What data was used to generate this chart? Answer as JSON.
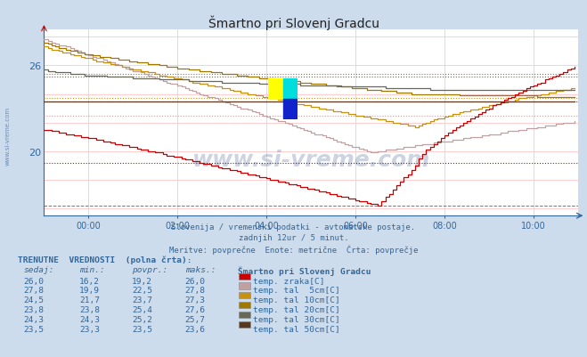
{
  "title": "Šmartno pri Slovenj Gradcu",
  "subtitle1": "Slovenija / vremenski podatki - avtomatske postaje.",
  "subtitle2": "zadnjih 12ur / 5 minut.",
  "subtitle3": "Meritve: povprečne  Enote: metrične  Črta: povprečje",
  "bg_color": "#ccdcec",
  "plot_bg_color": "#ffffff",
  "xmin": 0,
  "xmax": 144,
  "ymin": 15.5,
  "ymax": 28.5,
  "yticks": [
    20,
    26
  ],
  "xtick_labels": [
    "00:00",
    "02:00",
    "04:00",
    "06:00",
    "08:00",
    "10:00"
  ],
  "xtick_positions": [
    12,
    36,
    60,
    84,
    108,
    132
  ],
  "grid_color": "#ffbbbb",
  "line_colors": {
    "zrak": "#cc0000",
    "tal5": "#c0a0a0",
    "tal10": "#c89010",
    "tal20": "#a07800",
    "tal30": "#686858",
    "tal50": "#583820"
  },
  "table_color": "#336699",
  "legend_colors": [
    "#cc0000",
    "#c0a0a0",
    "#c89010",
    "#a07800",
    "#686858",
    "#583820"
  ],
  "legend_labels": [
    "temp. zraka[C]",
    "temp. tal  5cm[C]",
    "temp. tal 10cm[C]",
    "temp. tal 20cm[C]",
    "temp. tal 30cm[C]",
    "temp. tal 50cm[C]"
  ],
  "table_rows": [
    {
      "sedaj": "26,0",
      "min": "16,2",
      "povpr": "19,2",
      "maks": "26,0",
      "label": "temp. zraka[C]",
      "color": "#cc0000"
    },
    {
      "sedaj": "27,8",
      "min": "19,9",
      "povpr": "22,5",
      "maks": "27,8",
      "label": "temp. tal  5cm[C]",
      "color": "#c0a0a0"
    },
    {
      "sedaj": "24,5",
      "min": "21,7",
      "povpr": "23,7",
      "maks": "27,3",
      "label": "temp. tal 10cm[C]",
      "color": "#c89010"
    },
    {
      "sedaj": "23,8",
      "min": "23,8",
      "povpr": "25,4",
      "maks": "27,6",
      "label": "temp. tal 20cm[C]",
      "color": "#a07800"
    },
    {
      "sedaj": "24,3",
      "min": "24,3",
      "povpr": "25,2",
      "maks": "25,7",
      "label": "temp. tal 30cm[C]",
      "color": "#686858"
    },
    {
      "sedaj": "23,5",
      "min": "23,3",
      "povpr": "23,5",
      "maks": "23,6",
      "label": "temp. tal 50cm[C]",
      "color": "#583820"
    }
  ],
  "avg_values": {
    "zrak": 19.2,
    "tal5": 22.5,
    "tal10": 23.7,
    "tal20": 25.4,
    "tal30": 25.2,
    "tal50": 23.5
  },
  "min_values": {
    "zrak": 16.2,
    "tal5": 19.9,
    "tal10": 21.7,
    "tal20": 23.8,
    "tal30": 24.3,
    "tal50": 23.3
  },
  "max_values": {
    "zrak": 26.0,
    "tal5": 27.8,
    "tal10": 27.3,
    "tal20": 27.6,
    "tal30": 25.7,
    "tal50": 23.6
  }
}
